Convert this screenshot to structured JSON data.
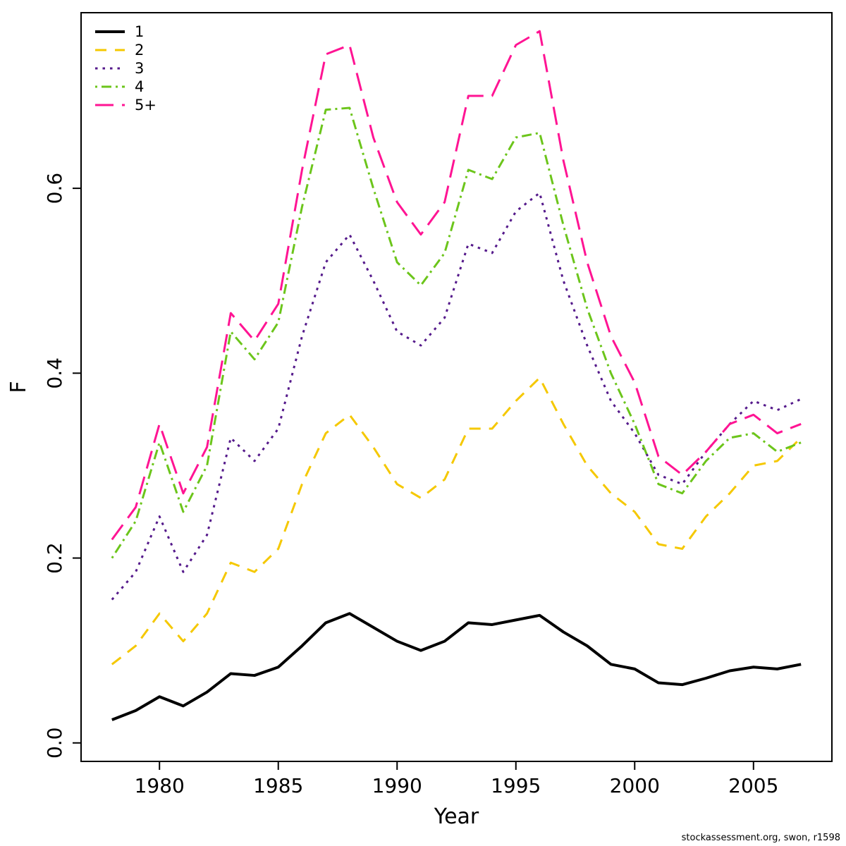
{
  "footer": {
    "credit": "stockassessment.org, swon, r1598"
  },
  "chart_data": {
    "type": "line",
    "title": "",
    "xlabel": "Year",
    "ylabel": "F",
    "xlim": [
      1976.7,
      2008.3
    ],
    "ylim": [
      -0.02,
      0.79
    ],
    "xticks": [
      1980,
      1985,
      1990,
      1995,
      2000,
      2005
    ],
    "yticks": [
      0.0,
      0.2,
      0.4,
      0.6
    ],
    "grid": false,
    "legend_position": "top-left",
    "x": [
      1978,
      1979,
      1980,
      1981,
      1982,
      1983,
      1984,
      1985,
      1986,
      1987,
      1988,
      1989,
      1990,
      1991,
      1992,
      1993,
      1994,
      1995,
      1996,
      1997,
      1998,
      1999,
      2000,
      2001,
      2002,
      2003,
      2004,
      2005,
      2006,
      2007
    ],
    "series": [
      {
        "name": "1",
        "color": "#000000",
        "linestyle": "solid",
        "linewidth": 4,
        "values": [
          0.025,
          0.035,
          0.05,
          0.04,
          0.055,
          0.075,
          0.073,
          0.082,
          0.105,
          0.13,
          0.14,
          0.125,
          0.11,
          0.1,
          0.11,
          0.13,
          0.128,
          0.133,
          0.138,
          0.12,
          0.105,
          0.085,
          0.08,
          0.065,
          0.063,
          0.07,
          0.078,
          0.082,
          0.08,
          0.085
        ]
      },
      {
        "name": "2",
        "color": "#F5C800",
        "linestyle": "dashed",
        "linewidth": 3,
        "values": [
          0.085,
          0.105,
          0.14,
          0.11,
          0.14,
          0.195,
          0.185,
          0.21,
          0.28,
          0.335,
          0.355,
          0.32,
          0.28,
          0.265,
          0.285,
          0.34,
          0.34,
          0.37,
          0.395,
          0.345,
          0.3,
          0.27,
          0.25,
          0.215,
          0.21,
          0.245,
          0.27,
          0.3,
          0.305,
          0.33
        ]
      },
      {
        "name": "3",
        "color": "#551A8B",
        "linestyle": "dotted",
        "linewidth": 3,
        "values": [
          0.155,
          0.185,
          0.245,
          0.185,
          0.225,
          0.33,
          0.305,
          0.34,
          0.44,
          0.52,
          0.55,
          0.5,
          0.445,
          0.43,
          0.46,
          0.54,
          0.53,
          0.575,
          0.595,
          0.5,
          0.43,
          0.37,
          0.335,
          0.29,
          0.28,
          0.315,
          0.345,
          0.37,
          0.36,
          0.372
        ]
      },
      {
        "name": "4",
        "color": "#6CC51B",
        "linestyle": "dashdot",
        "linewidth": 3,
        "values": [
          0.2,
          0.24,
          0.325,
          0.25,
          0.3,
          0.445,
          0.415,
          0.455,
          0.58,
          0.685,
          0.687,
          0.6,
          0.52,
          0.495,
          0.53,
          0.62,
          0.61,
          0.655,
          0.66,
          0.56,
          0.47,
          0.4,
          0.345,
          0.28,
          0.27,
          0.305,
          0.33,
          0.335,
          0.315,
          0.325
        ]
      },
      {
        "name": "5+",
        "color": "#FF1493",
        "linestyle": "longdash",
        "linewidth": 3,
        "values": [
          0.22,
          0.255,
          0.345,
          0.27,
          0.32,
          0.465,
          0.435,
          0.475,
          0.62,
          0.745,
          0.755,
          0.655,
          0.585,
          0.55,
          0.585,
          0.7,
          0.7,
          0.755,
          0.77,
          0.63,
          0.52,
          0.44,
          0.39,
          0.31,
          0.29,
          0.315,
          0.345,
          0.355,
          0.335,
          0.345
        ]
      }
    ]
  }
}
